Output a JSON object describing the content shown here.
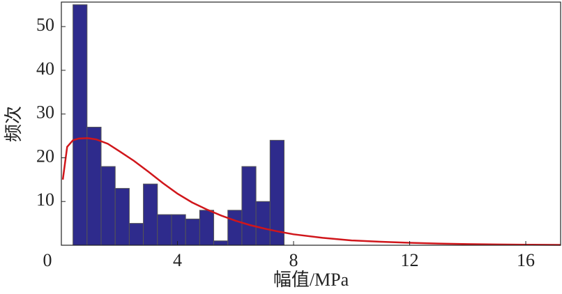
{
  "chart_data": {
    "type": "histogram",
    "x_label": "幅值/MPa",
    "y_label": "频次",
    "bins": [
      0.4,
      0.885,
      1.37,
      1.855,
      2.34,
      2.825,
      3.31,
      3.795,
      4.28,
      4.765,
      5.25,
      5.735,
      6.22,
      6.705,
      7.19,
      7.675
    ],
    "values": [
      55,
      27,
      18,
      13,
      5,
      14,
      7,
      7,
      6,
      8,
      1,
      8,
      18,
      10,
      24
    ],
    "color": "#2e2b8c",
    "curve": {
      "color": "#d0161b",
      "x": [
        0.05,
        0.2,
        0.4,
        0.6,
        0.9,
        1.2,
        1.6,
        2,
        2.5,
        3,
        3.5,
        4,
        4.5,
        5,
        5.5,
        6,
        6.5,
        7,
        7.5,
        8,
        9,
        10,
        11,
        12,
        13,
        14,
        15,
        16,
        17.2
      ],
      "values": [
        15,
        22.5,
        24,
        24.4,
        24.5,
        24.2,
        23.2,
        21.5,
        19.3,
        16.8,
        14.2,
        11.8,
        9.8,
        8.2,
        6.8,
        5.6,
        4.6,
        3.8,
        3.1,
        2.5,
        1.7,
        1.1,
        0.8,
        0.55,
        0.38,
        0.26,
        0.18,
        0.12,
        0.08
      ]
    },
    "xlim": [
      0,
      17.2
    ],
    "xticks": [
      0,
      4,
      8,
      12,
      16
    ],
    "ylim": [
      0,
      55.6
    ],
    "yticks": [
      10,
      20,
      30,
      40,
      50
    ]
  }
}
